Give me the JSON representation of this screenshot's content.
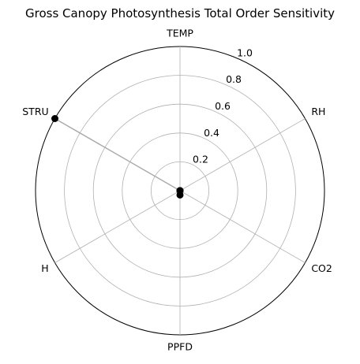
{
  "chart_data": {
    "type": "radar",
    "title": "Gross Canopy Photosynthesis Total Order Sensitivity",
    "categories": [
      "TEMP",
      "RH",
      "CO2",
      "PPFD",
      "H",
      "STRU"
    ],
    "values": [
      0.0,
      0.0,
      0.0,
      0.03,
      0.0,
      1.0
    ],
    "rlim": [
      0,
      1.0
    ],
    "rticks": [
      0.2,
      0.4,
      0.6,
      0.8,
      1.0
    ],
    "rtick_labels": [
      "0.2",
      "0.4",
      "0.6",
      "0.8",
      "1.0"
    ],
    "grid": true,
    "line_color": "#aaaaaa",
    "marker_color": "#000000",
    "grid_color": "#b0b0b0"
  }
}
